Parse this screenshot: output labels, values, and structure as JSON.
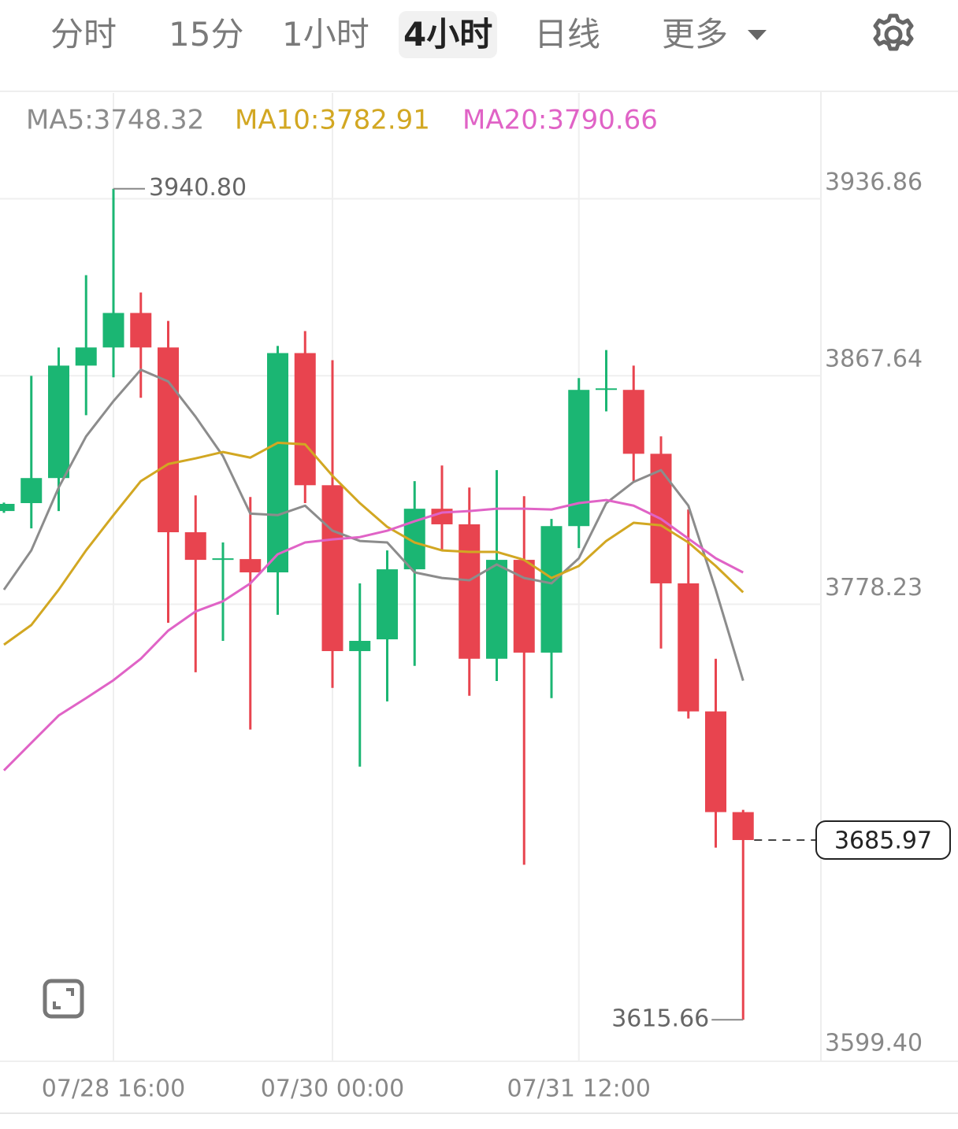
{
  "tabs": [
    "分时",
    "15分",
    "1小时",
    "4小时",
    "日线",
    "更多"
  ],
  "active_tab": 3,
  "chart_data": {
    "type": "candlestick",
    "categories": [
      null,
      null,
      null,
      null,
      "07/28 16:00",
      null,
      null,
      null,
      null,
      null,
      null,
      null,
      "07/30 00:00",
      null,
      null,
      null,
      null,
      null,
      null,
      null,
      null,
      "07/31 12:00",
      null,
      null,
      null,
      null,
      null,
      null
    ],
    "open": [
      3814.7,
      3817.8,
      3827.6,
      3871.6,
      3878.7,
      3892.2,
      3878.7,
      3806.4,
      3795.6,
      3795.9,
      3790.7,
      3876.5,
      3824.8,
      3759.9,
      3764.5,
      3791.9,
      3815.6,
      3809.5,
      3756.9,
      3795.6,
      3759.3,
      3808.8,
      3862.1,
      3862.1,
      3837.1,
      3786.4,
      3736.3,
      3696.9
    ],
    "high": [
      3818.0,
      3867.6,
      3878.7,
      3907.0,
      3940.8,
      3900.2,
      3889.1,
      3820.8,
      3802.4,
      3820.2,
      3879.3,
      3885.1,
      3873.7,
      3786.4,
      3799.3,
      3826.4,
      3832.5,
      3823.9,
      3830.7,
      3820.5,
      3811.6,
      3866.7,
      3877.7,
      3871.6,
      3843.9,
      3815.3,
      3756.9,
      3697.8
    ],
    "low": [
      3814.0,
      3807.9,
      3814.7,
      3852.2,
      3867.0,
      3859.0,
      3771.0,
      3751.6,
      3763.9,
      3729.2,
      3774.1,
      3817.8,
      3745.5,
      3714.7,
      3740.2,
      3754.1,
      3799.3,
      3742.4,
      3748.2,
      3676.3,
      3741.5,
      3800.2,
      3853.7,
      3826.4,
      3760.9,
      3733.5,
      3683.0,
      3615.66
    ],
    "close": [
      3817.5,
      3827.6,
      3871.6,
      3878.7,
      3892.2,
      3878.7,
      3806.4,
      3795.6,
      3796.2,
      3790.7,
      3876.5,
      3824.8,
      3759.9,
      3763.9,
      3791.9,
      3815.6,
      3809.5,
      3756.9,
      3795.6,
      3759.3,
      3808.8,
      3862.1,
      3862.7,
      3837.1,
      3786.4,
      3736.3,
      3696.9,
      3685.97
    ],
    "up_color": "#1bb673",
    "down_color": "#e8444f",
    "series": [
      {
        "name": "MA5:3748.32",
        "color": "#8c8c8c",
        "values": [
          3783.9,
          3799.3,
          3823.9,
          3843.9,
          3857.7,
          3870.0,
          3865.4,
          3851.6,
          3836.2,
          3813.7,
          3813.1,
          3816.8,
          3807.0,
          3803.0,
          3802.4,
          3790.7,
          3788.5,
          3787.6,
          3793.8,
          3788.5,
          3786.4,
          3796.2,
          3817.8,
          3826.1,
          3830.7,
          3816.8,
          3783.9,
          3748.32
        ]
      },
      {
        "name": "MA10:3782.91",
        "color": "#d2a722",
        "values": [
          3762.4,
          3770.1,
          3783.9,
          3799.3,
          3813.1,
          3826.4,
          3833.1,
          3835.3,
          3837.8,
          3835.6,
          3841.4,
          3840.8,
          3828.5,
          3817.8,
          3808.5,
          3802.4,
          3799.3,
          3798.7,
          3798.7,
          3795.6,
          3788.5,
          3793.2,
          3803.0,
          3810.1,
          3809.1,
          3802.4,
          3793.2,
          3782.91
        ]
      },
      {
        "name": "MA20:3790.66",
        "color": "#e063c6",
        "values": [
          3713.2,
          3724.0,
          3734.7,
          3741.5,
          3748.5,
          3756.9,
          3767.9,
          3775.4,
          3779.4,
          3786.4,
          3797.8,
          3802.4,
          3803.6,
          3804.5,
          3807.0,
          3810.7,
          3814.1,
          3814.7,
          3815.6,
          3815.6,
          3815.3,
          3817.8,
          3819.0,
          3816.8,
          3811.6,
          3803.9,
          3796.2,
          3790.66
        ]
      }
    ],
    "ylim": [
      3599.4,
      3978.3
    ],
    "yticks": [
      3936.86,
      3867.64,
      3778.23,
      {
        "value": 3599.4,
        "label": "3599.40"
      }
    ],
    "grid": true,
    "max_marker": {
      "value": 3940.8,
      "label": "3940.80"
    },
    "min_marker": 3615.66,
    "last_price": 3685.97
  }
}
